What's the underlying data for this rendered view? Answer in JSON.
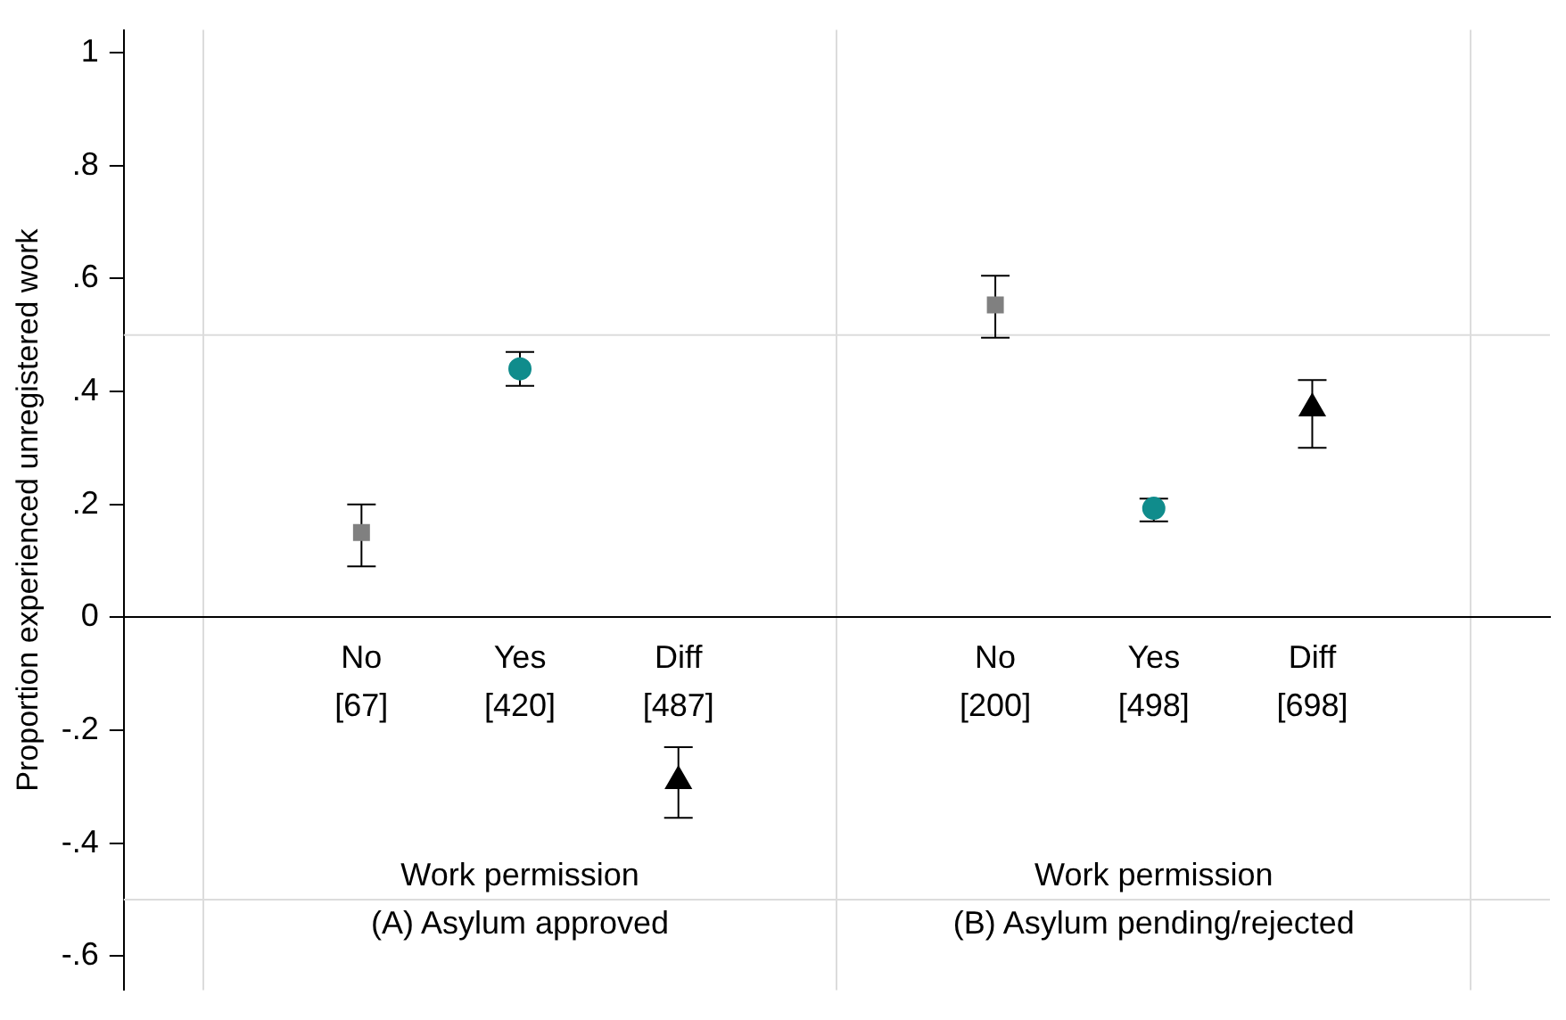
{
  "chart_data": {
    "type": "scatter",
    "ylabel": "Proportion experienced unregistered work",
    "categories": [
      null,
      "No\n[67]",
      "Yes\n[420]",
      "Diff\n[487]",
      null,
      "No\n[200]",
      "Yes\n[498]",
      "Diff\n[698]",
      null
    ],
    "series": [
      {
        "color": "#808080",
        "marker": "square",
        "values": [
          null,
          0.15,
          null,
          null,
          null,
          0.553,
          null,
          null,
          null
        ],
        "errors": [
          null,
          [
            0.09,
            0.2
          ],
          null,
          null,
          null,
          [
            0.495,
            0.605
          ],
          null,
          null,
          null
        ]
      },
      {
        "color": "#108c8c",
        "marker": "circle",
        "values": [
          null,
          null,
          0.44,
          null,
          null,
          null,
          0.193,
          null,
          null
        ],
        "errors": [
          null,
          null,
          [
            0.41,
            0.47
          ],
          null,
          null,
          null,
          [
            0.17,
            0.21
          ],
          null,
          null
        ]
      },
      {
        "color": "#000000",
        "marker": "triangle",
        "values": [
          null,
          null,
          null,
          -0.29,
          null,
          null,
          null,
          0.37,
          null
        ],
        "errors": [
          null,
          null,
          null,
          [
            -0.355,
            -0.23
          ],
          null,
          null,
          null,
          [
            0.3,
            0.42
          ],
          null
        ]
      }
    ],
    "ylim": [
      -0.66,
      1.04
    ],
    "yticks": [
      {
        "value": -0.6,
        "label": "-.6"
      },
      {
        "value": -0.4,
        "label": "-.4"
      },
      {
        "value": -0.2,
        "label": "-.2"
      },
      0,
      {
        "value": 0.2,
        "label": ".2"
      },
      {
        "value": 0.4,
        "label": ".4"
      },
      {
        "value": 0.6,
        "label": ".6"
      },
      {
        "value": 0.8,
        "label": ".8"
      },
      1
    ],
    "grid": "x",
    "legend": false,
    "ref_lines": [
      {
        "axis": "y",
        "value": 0.5,
        "color": "#dcdcdc"
      },
      {
        "axis": "y",
        "value": -0.5,
        "color": "#dcdcdc"
      }
    ],
    "annotations": [
      "Work permission\n(A) Asylum approved",
      "Work permission\n(B) Asylum pending/rejected"
    ]
  }
}
